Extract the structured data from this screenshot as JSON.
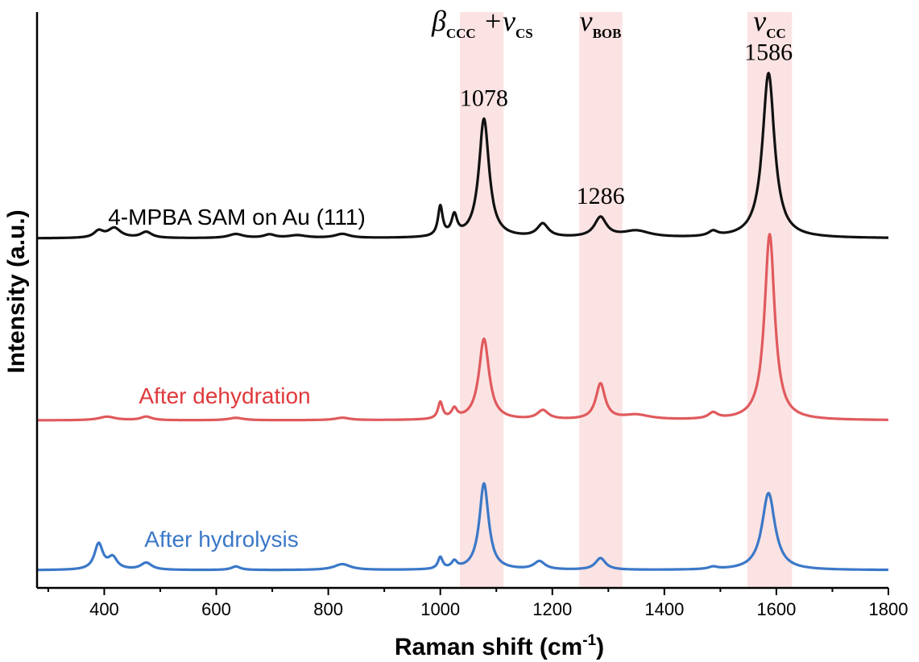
{
  "chart_data": {
    "type": "line",
    "xlabel": "Raman shift (cm",
    "xlabel_sup": "-1",
    "xlabel_close": ")",
    "ylabel": "Intensity (a.u.)",
    "xlim": [
      280,
      1800
    ],
    "xticks": [
      400,
      600,
      800,
      1000,
      1200,
      1400,
      1600,
      1800
    ],
    "yticks": [],
    "grid": false,
    "bands": [
      {
        "from": 1035,
        "to": 1113,
        "label_main": "β",
        "label_sub": "CCC",
        "label_plus": " +ν",
        "label_sub2": "CS"
      },
      {
        "from": 1248,
        "to": 1325,
        "label_main": "ν",
        "label_sub": "BOB"
      },
      {
        "from": 1548,
        "to": 1628,
        "label_main": "ν",
        "label_sub": "CC"
      }
    ],
    "band_color": "#fbe3e3",
    "series": [
      {
        "name": "4-MPBA SAM on Au (111)",
        "color": "#111111",
        "label_color": "#000000",
        "baseline": 0.0,
        "peaks": [
          [
            390,
            0.02,
            10
          ],
          [
            418,
            0.03,
            14
          ],
          [
            475,
            0.018,
            12
          ],
          [
            635,
            0.012,
            16
          ],
          [
            695,
            0.01,
            12
          ],
          [
            745,
            0.008,
            20
          ],
          [
            825,
            0.012,
            16
          ],
          [
            1000,
            0.09,
            5
          ],
          [
            1025,
            0.06,
            6
          ],
          [
            1078,
            0.36,
            11
          ],
          [
            1183,
            0.04,
            12
          ],
          [
            1286,
            0.06,
            13
          ],
          [
            1350,
            0.02,
            30
          ],
          [
            1487,
            0.015,
            10
          ],
          [
            1586,
            0.5,
            13
          ]
        ]
      },
      {
        "name": "After dehydration",
        "color": "#e05a5d",
        "label_color": "#e0393c",
        "baseline": 0.0,
        "peaks": [
          [
            405,
            0.015,
            18
          ],
          [
            475,
            0.015,
            12
          ],
          [
            635,
            0.01,
            16
          ],
          [
            825,
            0.01,
            16
          ],
          [
            1000,
            0.07,
            5
          ],
          [
            1025,
            0.04,
            6
          ],
          [
            1078,
            0.34,
            11
          ],
          [
            1183,
            0.038,
            12
          ],
          [
            1286,
            0.15,
            10
          ],
          [
            1350,
            0.02,
            30
          ],
          [
            1487,
            0.025,
            10
          ],
          [
            1588,
            0.78,
            11
          ]
        ]
      },
      {
        "name": "After hydrolysis",
        "color": "#3b78c8",
        "label_color": "#3b78c8",
        "baseline": 0.0,
        "peaks": [
          [
            390,
            0.11,
            9
          ],
          [
            415,
            0.05,
            10
          ],
          [
            475,
            0.03,
            12
          ],
          [
            635,
            0.015,
            10
          ],
          [
            825,
            0.025,
            18
          ],
          [
            1000,
            0.05,
            5
          ],
          [
            1025,
            0.03,
            6
          ],
          [
            1078,
            0.37,
            10
          ],
          [
            1177,
            0.035,
            12
          ],
          [
            1286,
            0.05,
            11
          ],
          [
            1487,
            0.01,
            10
          ],
          [
            1586,
            0.33,
            14
          ]
        ]
      }
    ],
    "peak_labels": [
      {
        "text": "1078",
        "x": 1078,
        "series": 0
      },
      {
        "text": "1286",
        "x": 1286,
        "series": 0
      },
      {
        "text": "1586",
        "x": 1586,
        "series": 0
      }
    ]
  }
}
